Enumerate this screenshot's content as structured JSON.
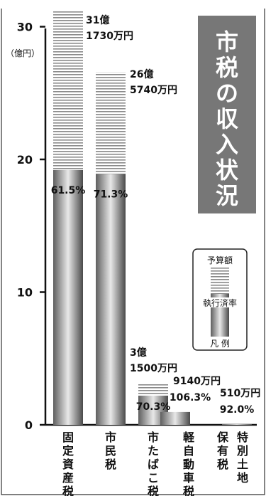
{
  "chart_data": {
    "type": "bar",
    "title": "市税の収入状況",
    "y_unit": "（億円）",
    "ylim": [
      0,
      32
    ],
    "yticks": [
      0,
      10,
      20,
      30
    ],
    "categories": [
      "固定資産税",
      "市民税",
      "市たばこ税",
      "軽自動車税",
      "特別土地保有税"
    ],
    "category_labels": [
      {
        "cols": [
          "固定資産税"
        ]
      },
      {
        "cols": [
          "市民税"
        ]
      },
      {
        "cols": [
          "市たばこ税"
        ]
      },
      {
        "cols": [
          "軽自動車税"
        ]
      },
      {
        "cols": [
          "保有税",
          "特別土地"
        ]
      }
    ],
    "series": [
      {
        "name": "予算額",
        "values": [
          31.173,
          26.574,
          3.15,
          0.914,
          0.051
        ],
        "labels": [
          [
            "31億",
            "1730万円"
          ],
          [
            "26億",
            "5740万円"
          ],
          [
            "3億",
            "1500万円"
          ],
          [
            "9140万円"
          ],
          [
            "510万円"
          ]
        ]
      },
      {
        "name": "執行済率",
        "values": [
          19.2,
          18.9,
          2.2,
          0.97,
          0.047
        ],
        "rates": [
          "61.5%",
          "71.3%",
          "70.3%",
          "106.3%",
          "92.0%"
        ]
      }
    ],
    "legend": {
      "budget": "予算額",
      "rate": "執行済率",
      "title": "凡 例",
      "position": "right"
    },
    "grid": false
  }
}
